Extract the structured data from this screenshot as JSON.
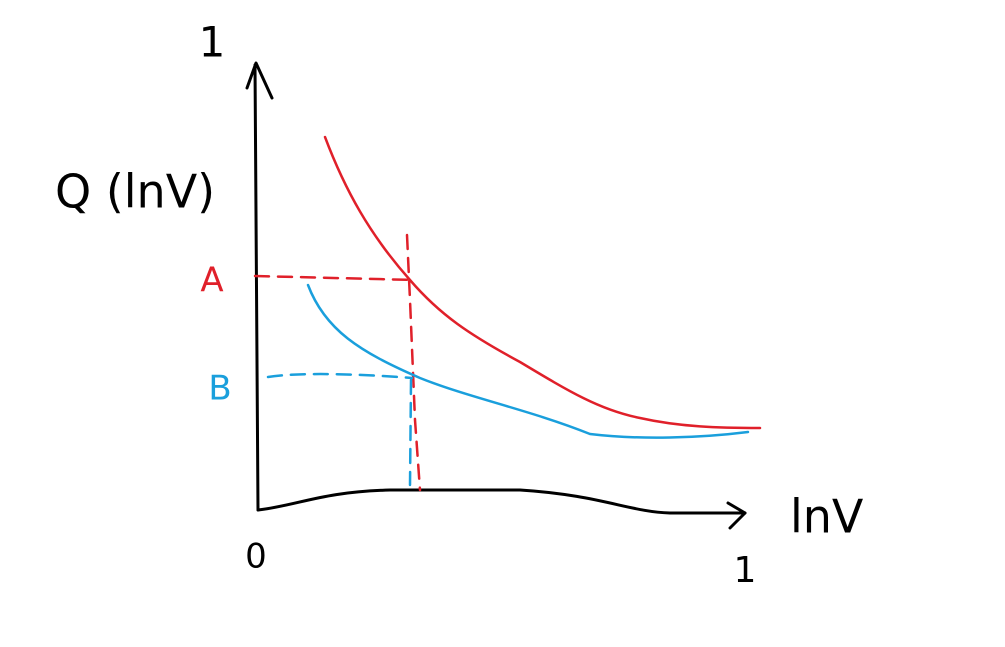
{
  "axes": {
    "y_end": "1",
    "y_label": "Q (lnV)",
    "origin": "0",
    "x_label": "lnV",
    "x_end": "1"
  },
  "curves": [
    {
      "label": "A"
    },
    {
      "label": "B"
    }
  ]
}
